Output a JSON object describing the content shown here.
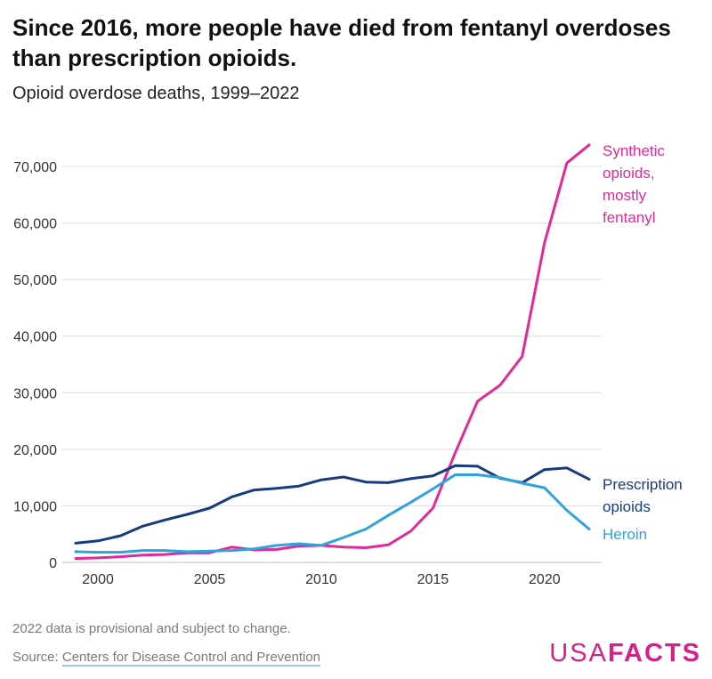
{
  "title": "Since 2016, more people have died from fentanyl overdoses than prescription opioids.",
  "subtitle": "Opioid overdose deaths, 1999–2022",
  "footer": {
    "note": "2022 data is provisional and subject to change.",
    "source_prefix": "Source: ",
    "source_link": "Centers for Disease Control and Prevention",
    "brand_light": "USA",
    "brand_bold": "FACTS"
  },
  "chart_data": {
    "type": "line",
    "title": "Opioid overdose deaths, 1999–2022",
    "xlabel": "",
    "ylabel": "",
    "ylim": [
      0,
      70000
    ],
    "xlim": [
      1999,
      2022
    ],
    "yticks": [
      0,
      10000,
      20000,
      30000,
      40000,
      50000,
      60000,
      70000
    ],
    "ytick_labels": [
      "0",
      "10,000",
      "20,000",
      "30,000",
      "40,000",
      "50,000",
      "60,000",
      "70,000"
    ],
    "xticks": [
      2000,
      2005,
      2010,
      2015,
      2020
    ],
    "xtick_labels": [
      "2000",
      "2005",
      "2010",
      "2015",
      "2020"
    ],
    "grid": true,
    "x": [
      1999,
      2000,
      2001,
      2002,
      2003,
      2004,
      2005,
      2006,
      2007,
      2008,
      2009,
      2010,
      2011,
      2012,
      2013,
      2014,
      2015,
      2016,
      2017,
      2018,
      2019,
      2020,
      2021,
      2022
    ],
    "series": [
      {
        "name": "Synthetic opioids, mostly fentanyl",
        "label_lines": [
          "Synthetic",
          "opioids,",
          "mostly",
          "fentanyl"
        ],
        "color": "#e0299a",
        "values": [
          700,
          800,
          1000,
          1300,
          1400,
          1700,
          1700,
          2700,
          2200,
          2300,
          2900,
          3000,
          2700,
          2600,
          3100,
          5500,
          9600,
          19400,
          28500,
          31300,
          36400,
          56500,
          70600,
          73800
        ]
      },
      {
        "name": "Prescription opioids",
        "label_lines": [
          "Prescription",
          "opioids"
        ],
        "color": "#163b7d",
        "values": [
          3400,
          3800,
          4700,
          6400,
          7500,
          8500,
          9600,
          11600,
          12800,
          13100,
          13500,
          14600,
          15100,
          14200,
          14100,
          14800,
          15300,
          17100,
          17000,
          14900,
          14100,
          16400,
          16700,
          14700
        ]
      },
      {
        "name": "Heroin",
        "label_lines": [
          "Heroin"
        ],
        "color": "#2ea3dc",
        "values": [
          1900,
          1800,
          1800,
          2100,
          2100,
          1900,
          2000,
          2100,
          2400,
          3000,
          3300,
          3000,
          4400,
          5900,
          8300,
          10600,
          13000,
          15500,
          15500,
          15000,
          14000,
          13200,
          9200,
          5900
        ]
      }
    ]
  }
}
